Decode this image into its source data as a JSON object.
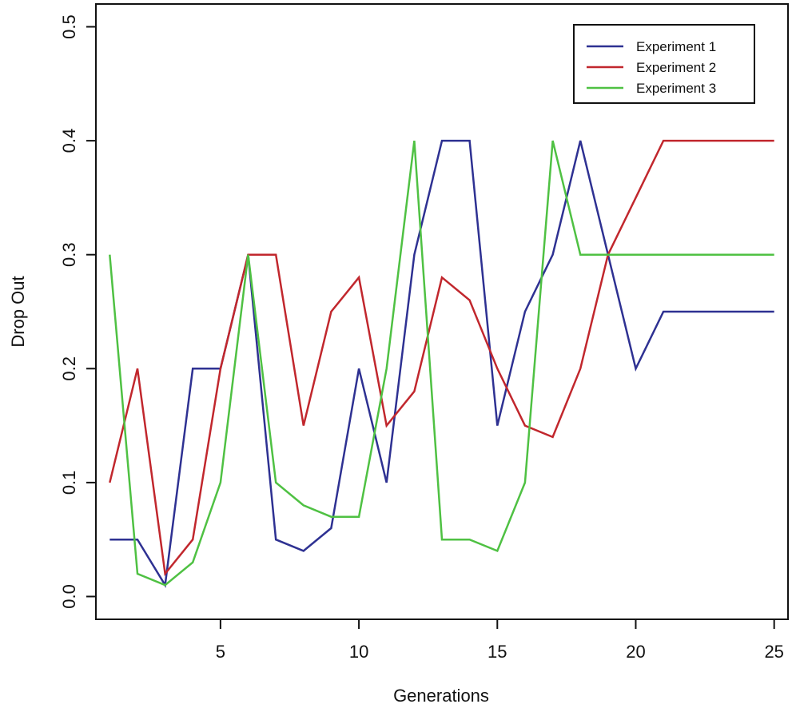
{
  "chart_data": {
    "type": "line",
    "title": "",
    "xlabel": "Generations",
    "ylabel": "Drop Out",
    "xlim": [
      0.5,
      25.5
    ],
    "ylim": [
      -0.02,
      0.52
    ],
    "xticks": [
      5,
      10,
      15,
      20,
      25
    ],
    "yticks": [
      0.0,
      0.1,
      0.2,
      0.3,
      0.4,
      0.5
    ],
    "ytick_labels": [
      "0.0",
      "0.1",
      "0.2",
      "0.3",
      "0.4",
      "0.5"
    ],
    "grid": false,
    "legend_position": "top-right",
    "x": [
      1,
      2,
      3,
      4,
      5,
      6,
      7,
      8,
      9,
      10,
      11,
      12,
      13,
      14,
      15,
      16,
      17,
      18,
      19,
      20,
      21,
      22,
      23,
      24,
      25
    ],
    "series": [
      {
        "name": "Experiment 1",
        "color": "#2e3192",
        "values": [
          0.05,
          0.05,
          0.01,
          0.2,
          0.2,
          0.3,
          0.05,
          0.04,
          0.06,
          0.2,
          0.1,
          0.3,
          0.4,
          0.4,
          0.15,
          0.25,
          0.3,
          0.4,
          0.3,
          0.2,
          0.25,
          0.25,
          0.25,
          0.25,
          0.25
        ]
      },
      {
        "name": "Experiment 2",
        "color": "#c1272d",
        "values": [
          0.1,
          0.2,
          0.02,
          0.05,
          0.2,
          0.3,
          0.3,
          0.15,
          0.25,
          0.28,
          0.15,
          0.18,
          0.28,
          0.26,
          0.2,
          0.15,
          0.14,
          0.2,
          0.3,
          0.35,
          0.4,
          0.4,
          0.4,
          0.4,
          0.4
        ]
      },
      {
        "name": "Experiment 3",
        "color": "#4fc143",
        "values": [
          0.3,
          0.02,
          0.01,
          0.03,
          0.1,
          0.3,
          0.1,
          0.08,
          0.07,
          0.07,
          0.2,
          0.4,
          0.05,
          0.05,
          0.04,
          0.1,
          0.4,
          0.3,
          0.3,
          0.3,
          0.3,
          0.3,
          0.3,
          0.3,
          0.3
        ]
      }
    ]
  }
}
